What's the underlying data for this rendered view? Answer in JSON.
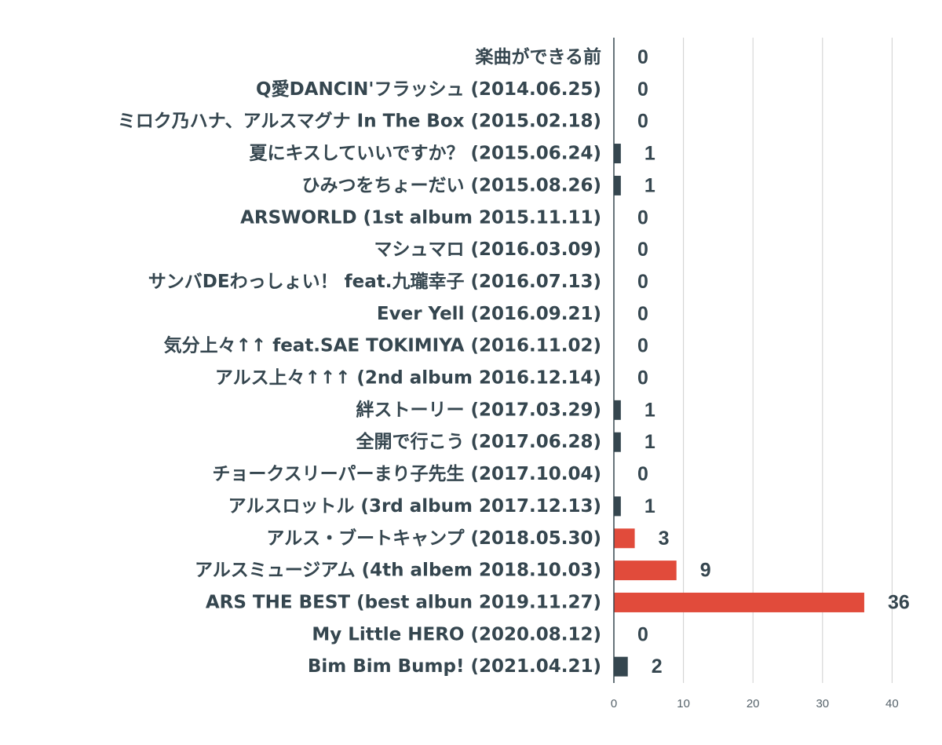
{
  "chart_data": {
    "type": "bar",
    "orientation": "horizontal",
    "categories": [
      "楽曲ができる前",
      "Q愛DANCIN'フラッシュ (2014.06.25)",
      "ミロク乃ハナ、アルスマグナ In The Box (2015.02.18)",
      "夏にキスしていいですか？ (2015.06.24)",
      "ひみつをちょーだい (2015.08.26)",
      "ARSWORLD (1st album 2015.11.11)",
      "マシュマロ (2016.03.09)",
      "サンバDEわっしょい！ feat.九瓏幸子 (2016.07.13)",
      "Ever Yell (2016.09.21)",
      "気分上々↑↑ feat.SAE TOKIMIYA  (2016.11.02)",
      "アルス上々↑↑↑ (2nd album 2016.12.14)",
      "絆ストーリー (2017.03.29)",
      "全開で行こう (2017.06.28)",
      "チョークスリーパーまり子先生 (2017.10.04)",
      "アルスロットル (3rd album 2017.12.13)",
      "アルス・ブートキャンプ (2018.05.30)",
      "アルスミュージアム (4th albem 2018.10.03)",
      "ARS THE BEST (best albun 2019.11.27)",
      "My Little HERO (2020.08.12)",
      "Bim Bim Bump! (2021.04.21)"
    ],
    "values": [
      0,
      0,
      0,
      1,
      1,
      0,
      0,
      0,
      0,
      0,
      0,
      1,
      1,
      0,
      1,
      3,
      9,
      36,
      0,
      2
    ],
    "bar_colors": [
      "#35464f",
      "#35464f",
      "#35464f",
      "#35464f",
      "#35464f",
      "#35464f",
      "#35464f",
      "#35464f",
      "#35464f",
      "#35464f",
      "#35464f",
      "#35464f",
      "#35464f",
      "#35464f",
      "#35464f",
      "#e14b3b",
      "#e14b3b",
      "#e14b3b",
      "#35464f",
      "#35464f"
    ],
    "x_ticks": [
      0,
      10,
      20,
      30,
      40
    ],
    "xlim": [
      0,
      40
    ],
    "grid": true,
    "data_labels": true,
    "title": "",
    "xlabel": "",
    "ylabel": ""
  }
}
